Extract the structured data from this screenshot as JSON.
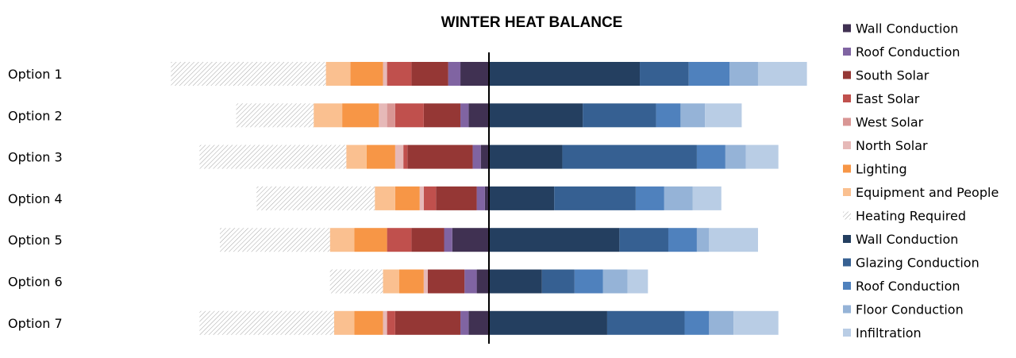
{
  "chart_data": {
    "type": "bar",
    "orientation": "horizontal",
    "stacked": true,
    "diverging": true,
    "title": "WINTER HEAT BALANCE",
    "xlabel": "",
    "ylabel": "",
    "grid": false,
    "legend_position": "right",
    "categories": [
      "Option 1",
      "Option 2",
      "Option 3",
      "Option 4",
      "Option 5",
      "Option 6",
      "Option 7"
    ],
    "gains": [
      {
        "name": "Wall Conduction",
        "color": "#403152",
        "values": [
          35,
          25,
          10,
          5,
          45,
          15,
          25
        ]
      },
      {
        "name": "Roof Conduction",
        "color": "#8064a2",
        "values": [
          15,
          10,
          10,
          10,
          10,
          15,
          10
        ]
      },
      {
        "name": "South Solar",
        "color": "#953735",
        "values": [
          45,
          45,
          80,
          50,
          40,
          45,
          80
        ]
      },
      {
        "name": "East Solar",
        "color": "#c0504d",
        "values": [
          30,
          35,
          5,
          15,
          30,
          0,
          10
        ]
      },
      {
        "name": "West Solar",
        "color": "#d99694",
        "values": [
          0,
          10,
          0,
          0,
          0,
          0,
          0
        ]
      },
      {
        "name": "North Solar",
        "color": "#e6b9b8",
        "values": [
          5,
          10,
          10,
          5,
          0,
          5,
          5
        ]
      },
      {
        "name": "Lighting",
        "color": "#f79646",
        "values": [
          40,
          45,
          35,
          30,
          40,
          30,
          35
        ]
      },
      {
        "name": "Equipment and People",
        "color": "#fac090",
        "values": [
          30,
          35,
          25,
          25,
          30,
          20,
          25
        ]
      },
      {
        "name": "Heating Required",
        "color": "#bfbfbf",
        "pattern": "hatch",
        "values": [
          190,
          95,
          180,
          145,
          135,
          65,
          165
        ]
      }
    ],
    "losses": [
      {
        "name": "Wall Conduction",
        "color": "#243f60",
        "values": [
          185,
          115,
          90,
          80,
          160,
          65,
          145
        ]
      },
      {
        "name": "Glazing Conduction",
        "color": "#366092",
        "values": [
          60,
          90,
          165,
          100,
          60,
          40,
          95
        ]
      },
      {
        "name": "Roof Conduction",
        "color": "#4f81bd",
        "values": [
          50,
          30,
          35,
          35,
          35,
          35,
          30
        ]
      },
      {
        "name": "Floor Conduction",
        "color": "#95b3d7",
        "values": [
          35,
          30,
          25,
          35,
          15,
          30,
          30
        ]
      },
      {
        "name": "Infiltration",
        "color": "#b9cde5",
        "values": [
          60,
          45,
          40,
          35,
          60,
          25,
          55
        ]
      }
    ]
  }
}
